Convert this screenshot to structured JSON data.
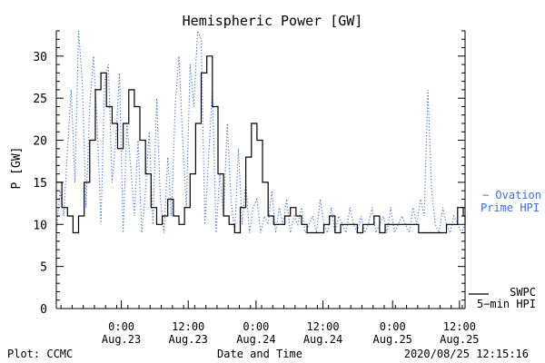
{
  "chart_data": {
    "type": "line",
    "title": "Hemispheric Power [GW]",
    "xlabel": "Date and Time",
    "ylabel": "P [GW]",
    "ylim": [
      0,
      33
    ],
    "yticks": [
      0,
      5,
      10,
      15,
      20,
      25,
      30
    ],
    "x_unit": "hours since 2020-08-22 14:30 UT",
    "xlim": [
      0,
      22
    ],
    "x_ticks": [
      {
        "x": 3.5,
        "time": "0:00",
        "date": "Aug.23"
      },
      {
        "x": 7.1,
        "time": "12:00",
        "date": "Aug.23"
      },
      {
        "x": 10.75,
        "time": "0:00",
        "date": "Aug.24"
      },
      {
        "x": 14.35,
        "time": "12:00",
        "date": "Aug.24"
      },
      {
        "x": 18.1,
        "time": "0:00",
        "date": "Aug.25"
      },
      {
        "x": 21.7,
        "time": "12:00",
        "date": "Aug.25"
      }
    ],
    "series": [
      {
        "name": "Ovation Prime HPI",
        "color": "#3a6fd8",
        "style": "dotted",
        "x": [
          0,
          0.2,
          0.4,
          0.6,
          0.8,
          1.0,
          1.2,
          1.4,
          1.6,
          1.8,
          2.0,
          2.2,
          2.4,
          2.6,
          2.8,
          3.0,
          3.2,
          3.4,
          3.6,
          3.8,
          4.0,
          4.2,
          4.4,
          4.6,
          4.8,
          5.0,
          5.2,
          5.4,
          5.6,
          5.8,
          6.0,
          6.2,
          6.4,
          6.6,
          6.8,
          7.0,
          7.2,
          7.4,
          7.6,
          7.8,
          8.0,
          8.2,
          8.4,
          8.6,
          8.8,
          9.0,
          9.2,
          9.4,
          9.6,
          9.8,
          10.0,
          10.2,
          10.4,
          10.6,
          10.8,
          11.0,
          11.2,
          11.4,
          11.6,
          11.8,
          12.0,
          12.2,
          12.4,
          12.6,
          12.8,
          13.0,
          13.2,
          13.4,
          13.6,
          13.8,
          14.0,
          14.2,
          14.4,
          14.6,
          14.8,
          15.0,
          15.2,
          15.4,
          15.6,
          15.8,
          16.0,
          16.2,
          16.4,
          16.6,
          16.8,
          17.0,
          17.2,
          17.4,
          17.6,
          17.8,
          18.0,
          18.2,
          18.4,
          18.6,
          18.8,
          19.0,
          19.2,
          19.4,
          19.6,
          19.8,
          20.0,
          20.2,
          20.4,
          20.6,
          20.8,
          21.0,
          21.2,
          21.4,
          21.6,
          21.8,
          22.0
        ],
        "values": [
          9,
          14,
          11,
          19,
          26,
          15,
          33,
          27,
          12,
          24,
          30,
          22,
          10,
          27,
          29,
          15,
          20,
          28,
          9,
          22,
          17,
          11,
          20,
          9,
          14,
          21,
          10,
          25,
          13,
          9,
          18,
          11,
          24,
          30,
          20,
          12,
          29,
          24,
          33,
          32,
          10,
          18,
          26,
          9,
          16,
          11,
          22,
          13,
          9,
          19,
          10,
          15,
          9,
          12,
          13,
          9,
          11,
          10,
          14,
          9,
          12,
          10,
          13,
          9,
          11,
          10,
          12,
          9,
          10,
          11,
          9,
          13,
          10,
          9,
          12,
          9,
          11,
          10,
          9,
          12,
          10,
          9,
          11,
          9,
          10,
          12,
          9,
          10,
          11,
          9,
          12,
          9,
          10,
          11,
          10,
          9,
          12,
          10,
          13,
          11,
          26,
          14,
          10,
          9,
          12,
          10,
          9,
          11,
          10,
          9,
          10
        ]
      },
      {
        "name": "SWPC 5-min HPI",
        "color": "#000000",
        "style": "solid",
        "x": [
          0,
          0.3,
          0.6,
          0.9,
          1.2,
          1.5,
          1.8,
          2.1,
          2.4,
          2.7,
          3.0,
          3.3,
          3.6,
          3.9,
          4.2,
          4.5,
          4.8,
          5.1,
          5.4,
          5.7,
          6.0,
          6.3,
          6.6,
          6.9,
          7.2,
          7.5,
          7.8,
          8.1,
          8.4,
          8.7,
          9.0,
          9.3,
          9.6,
          9.9,
          10.2,
          10.5,
          10.8,
          11.1,
          11.4,
          11.7,
          12.0,
          12.3,
          12.6,
          12.9,
          13.2,
          13.5,
          13.8,
          14.1,
          14.4,
          14.7,
          15.0,
          15.3,
          15.6,
          15.9,
          16.2,
          16.5,
          16.8,
          17.1,
          17.4,
          17.7,
          18.0,
          18.3,
          18.6,
          18.9,
          19.2,
          19.5,
          19.8,
          20.1,
          20.4,
          20.7,
          21.0,
          21.3,
          21.6,
          21.9,
          22.0
        ],
        "values": [
          15,
          12,
          11,
          9,
          11,
          15,
          20,
          26,
          28,
          24,
          22,
          19,
          22,
          26,
          24,
          20,
          16,
          12,
          10,
          11,
          13,
          11,
          10,
          12,
          16,
          22,
          28,
          30,
          24,
          16,
          11,
          10,
          9,
          12,
          18,
          22,
          20,
          15,
          11,
          10,
          10,
          11,
          12,
          11,
          10,
          9,
          9,
          9,
          10,
          11,
          9,
          10,
          10,
          10,
          9,
          10,
          10,
          11,
          9,
          10,
          10,
          10,
          10,
          10,
          10,
          9,
          9,
          9,
          9,
          9,
          10,
          10,
          12,
          11,
          10
        ]
      }
    ],
    "legend": [
      {
        "dash": "−",
        "text_1": "Ovation",
        "text_2": "Prime HPI",
        "color": "#3a6fd8"
      },
      {
        "text_1": "SWPC",
        "text_2": "5−min HPI",
        "color": "#000000"
      }
    ],
    "grid": false,
    "legend_placement": "right"
  },
  "footer": {
    "plot_credit": "Plot: CCMC",
    "timestamp": "2020/08/25 12:15:16"
  }
}
